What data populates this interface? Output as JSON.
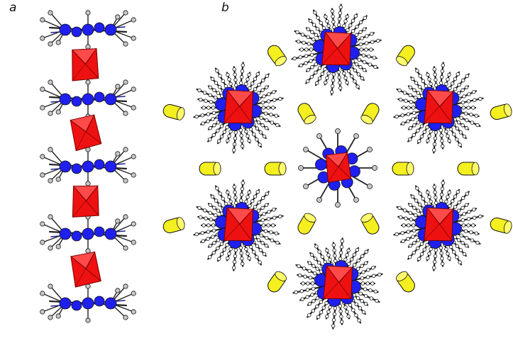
{
  "panels": [
    {
      "label": "a"
    },
    {
      "label": "b"
    }
  ],
  "colors": {
    "metal_octahedron": "#ee1111",
    "nitrogen_atom": "#1f1ff0",
    "ligand_bond": "#222222",
    "hydrogen_atom": "#c8c8c8",
    "counterion": "#f4ef1e",
    "outline": "#111111"
  }
}
